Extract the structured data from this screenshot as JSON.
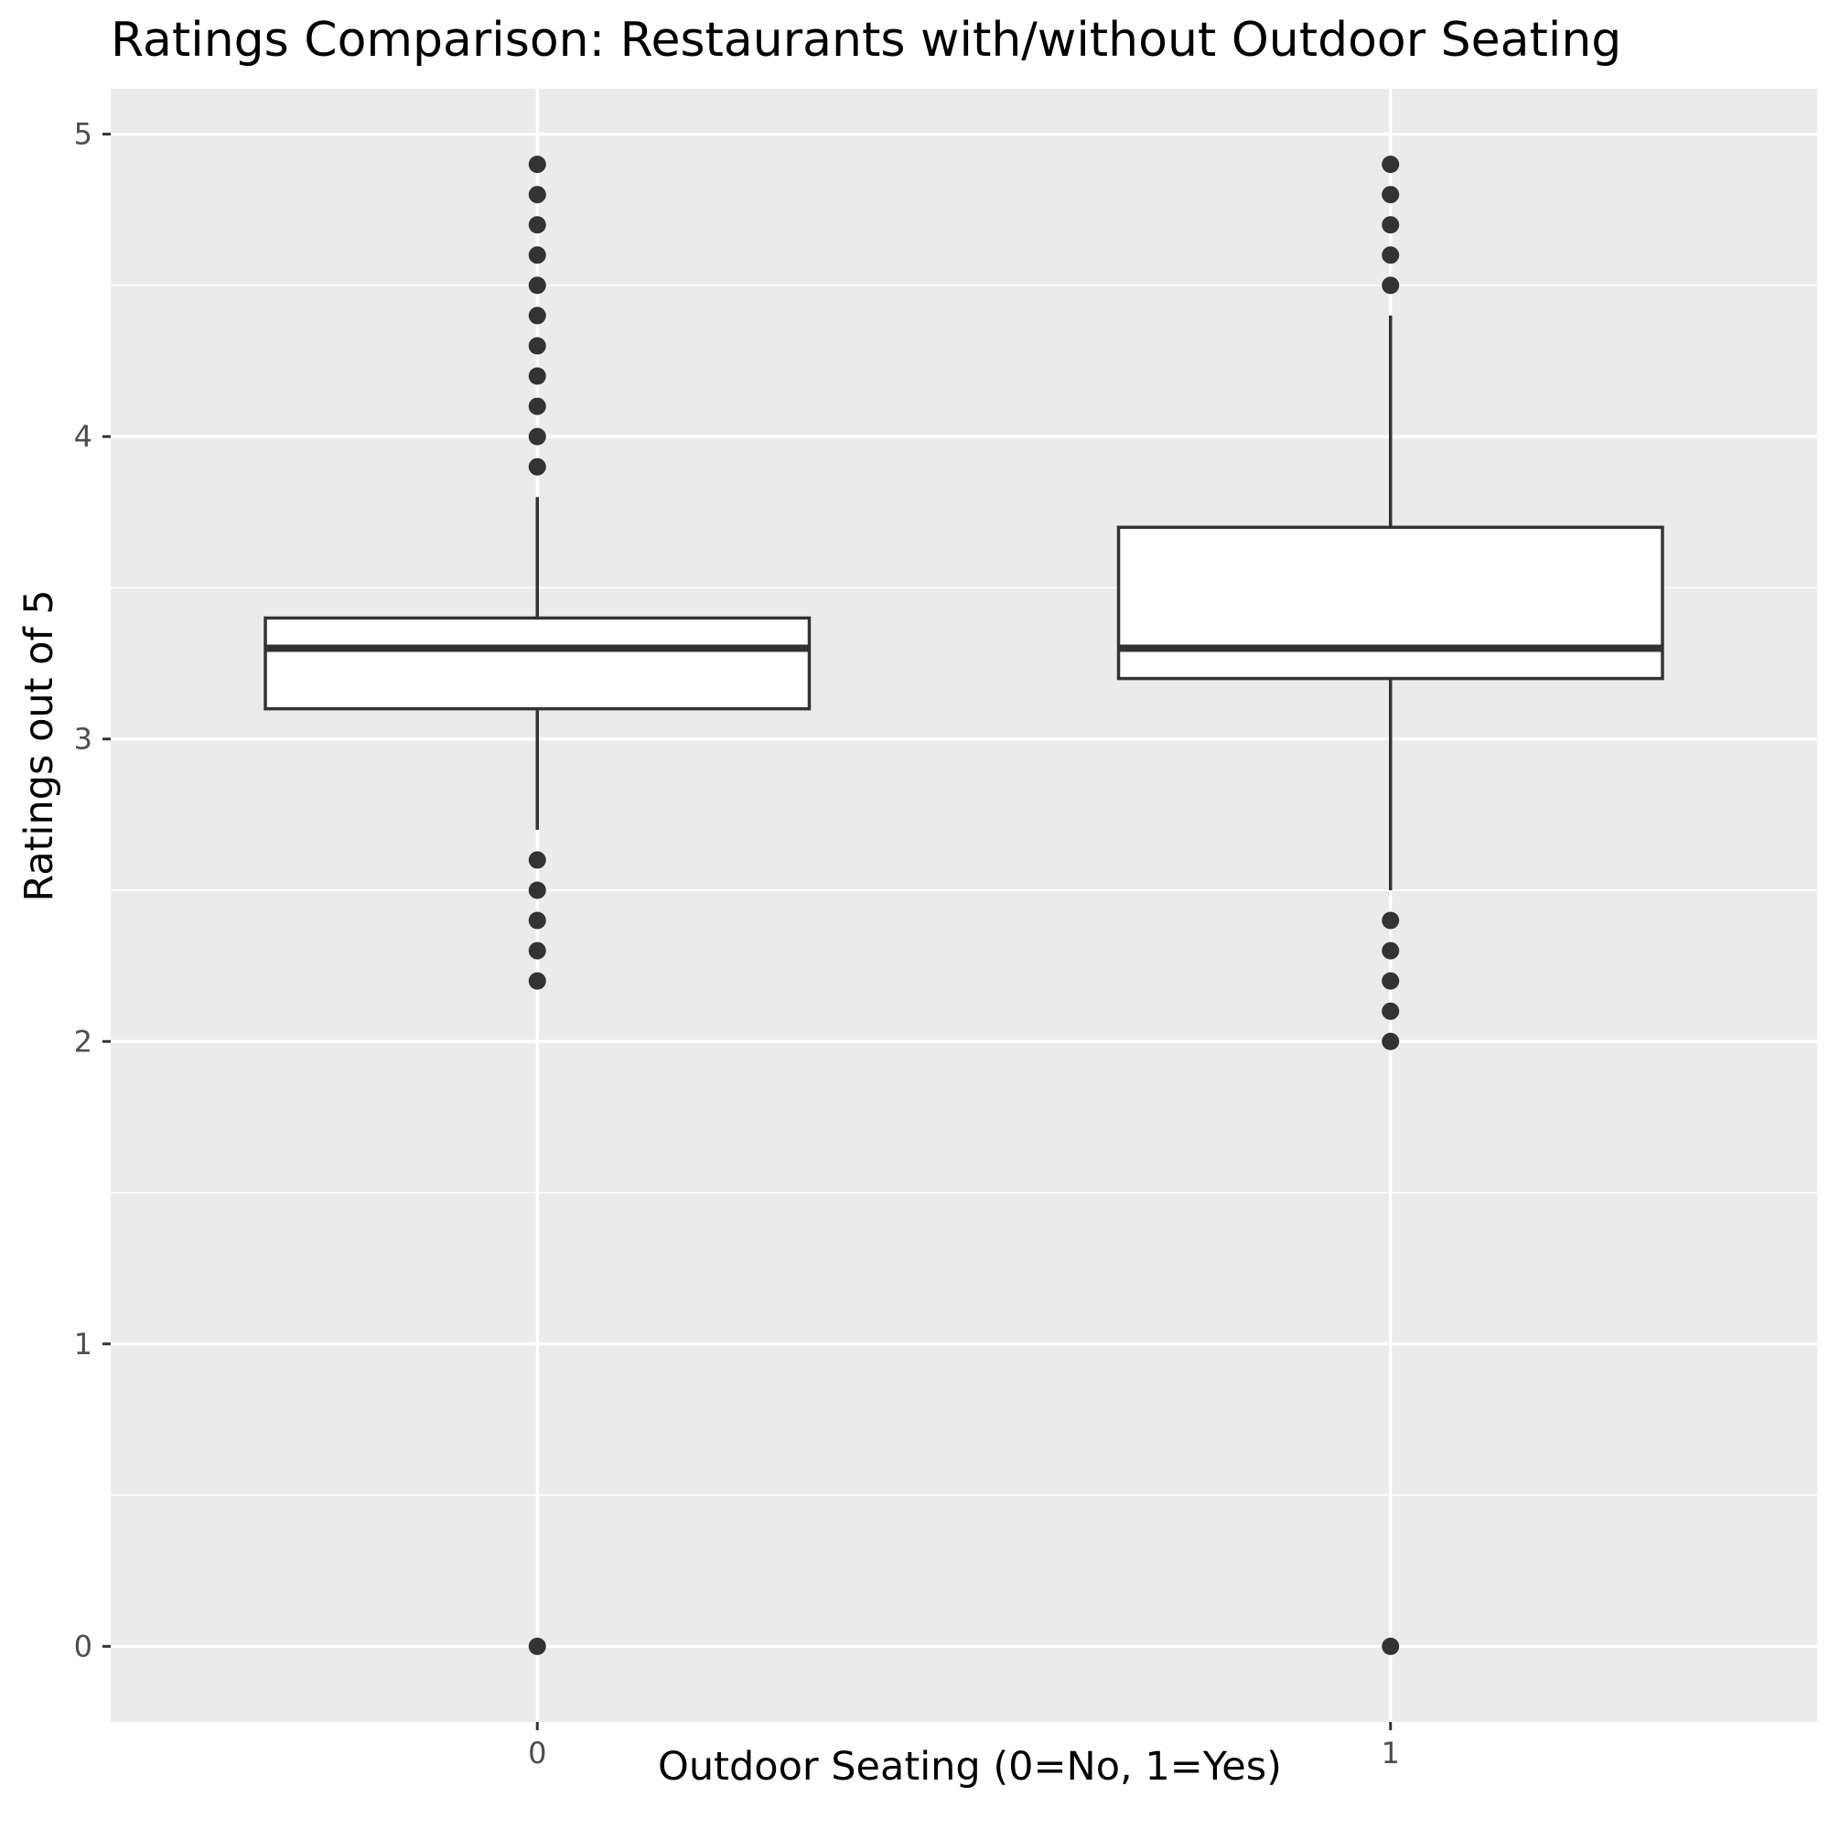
{
  "chart_data": {
    "type": "box",
    "title": "Ratings Comparison: Restaurants with/without Outdoor Seating",
    "xlabel": "Outdoor Seating (0=No, 1=Yes)",
    "ylabel": "Ratings out of 5",
    "categories": [
      "0",
      "1"
    ],
    "ylim": [
      -0.25,
      5.15
    ],
    "yticks": [
      0,
      1,
      2,
      3,
      4,
      5
    ],
    "grid": true,
    "colors": {
      "panel": "#EBEBEB",
      "grid": "#FFFFFF",
      "box_fill": "#FFFFFF",
      "box_line": "#333333",
      "tick_text": "#4D4D4D",
      "ticks": "#333333"
    },
    "boxes": [
      {
        "category": "0",
        "whisker_low": 2.7,
        "q1": 3.1,
        "median": 3.3,
        "q3": 3.4,
        "whisker_high": 3.8,
        "outliers": [
          4.9,
          4.8,
          4.7,
          4.6,
          4.5,
          4.4,
          4.3,
          4.2,
          4.1,
          4.0,
          3.9,
          2.6,
          2.5,
          2.4,
          2.3,
          2.2,
          0.0
        ]
      },
      {
        "category": "1",
        "whisker_low": 2.5,
        "q1": 3.2,
        "median": 3.3,
        "q3": 3.7,
        "whisker_high": 4.4,
        "outliers": [
          4.9,
          4.8,
          4.7,
          4.6,
          4.5,
          2.4,
          2.3,
          2.2,
          2.1,
          2.0,
          0.0
        ]
      }
    ]
  }
}
